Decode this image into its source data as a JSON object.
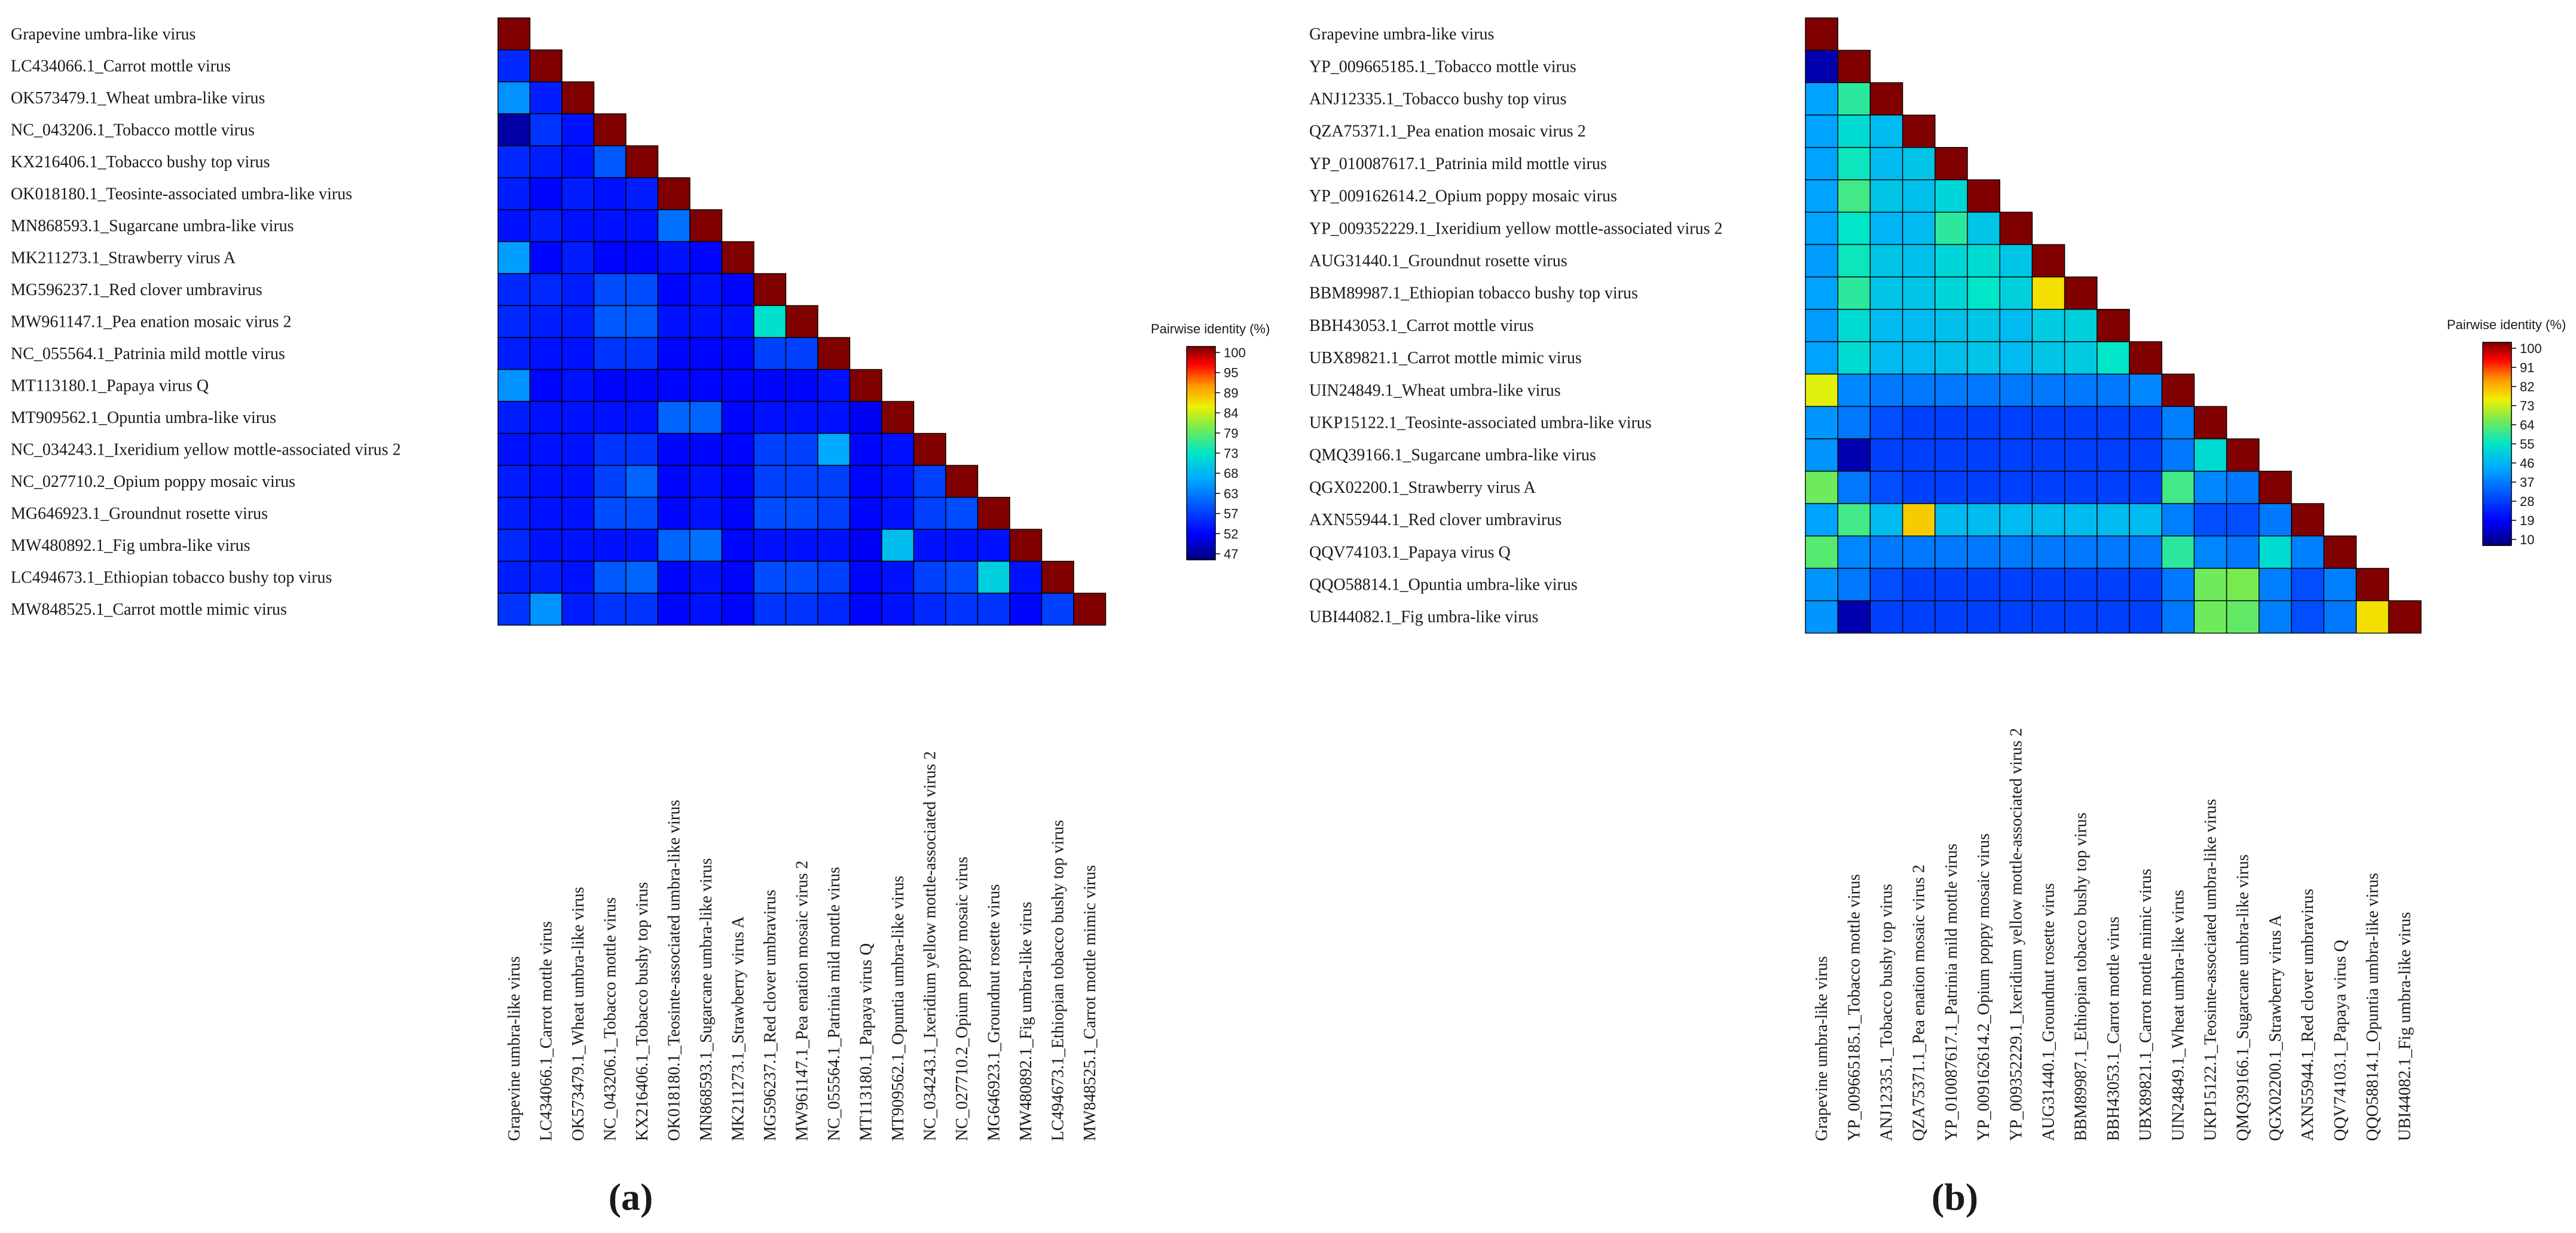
{
  "chart_data": [
    {
      "type": "heatmap",
      "panel": "(a)",
      "legend_title": "Pairwise identity (%)",
      "legend_ticks": [
        100,
        95,
        89,
        84,
        79,
        73,
        68,
        63,
        57,
        52,
        47
      ],
      "value_range": [
        45,
        100
      ],
      "labels": [
        "Grapevine umbra-like virus",
        "LC434066.1_Carrot mottle virus",
        "OK573479.1_Wheat umbra-like virus",
        "NC_043206.1_Tobacco mottle virus",
        "KX216406.1_Tobacco bushy top virus",
        "OK018180.1_Teosinte-associated umbra-like virus",
        "MN868593.1_Sugarcane umbra-like virus",
        "MK211273.1_Strawberry virus A",
        "MG596237.1_Red clover umbravirus",
        "MW961147.1_Pea enation mosaic virus 2",
        "NC_055564.1_Patrinia mild mottle virus",
        "MT113180.1_Papaya virus Q",
        "MT909562.1_Opuntia umbra-like virus",
        "NC_034243.1_Ixeridium yellow mottle-associated virus 2",
        "NC_027710.2_Opium poppy mosaic virus",
        "MG646923.1_Groundnut rosette virus",
        "MW480892.1_Fig umbra-like virus",
        "LC494673.1_Ethiopian tobacco bushy top virus",
        "MW848525.1_Carrot mottle mimic virus"
      ],
      "matrix": [
        [
          100
        ],
        [
          55,
          100
        ],
        [
          64,
          54,
          100
        ],
        [
          47,
          56,
          53,
          100
        ],
        [
          55,
          54,
          53,
          59,
          100
        ],
        [
          54,
          52,
          54,
          53,
          54,
          100
        ],
        [
          53,
          54,
          53,
          53,
          53,
          61,
          100
        ],
        [
          65,
          52,
          54,
          52,
          52,
          53,
          52,
          100
        ],
        [
          55,
          55,
          54,
          58,
          58,
          52,
          53,
          52,
          100
        ],
        [
          55,
          54,
          54,
          59,
          59,
          53,
          53,
          53,
          72,
          100
        ],
        [
          54,
          53,
          53,
          56,
          56,
          52,
          52,
          52,
          57,
          57,
          100
        ],
        [
          64,
          52,
          53,
          52,
          52,
          52,
          52,
          52,
          52,
          52,
          53,
          100
        ],
        [
          54,
          53,
          53,
          53,
          53,
          60,
          60,
          52,
          53,
          53,
          53,
          51,
          100
        ],
        [
          53,
          53,
          53,
          56,
          56,
          52,
          52,
          52,
          57,
          57,
          66,
          52,
          53,
          100
        ],
        [
          54,
          53,
          53,
          57,
          60,
          52,
          53,
          52,
          57,
          57,
          57,
          52,
          53,
          57,
          100
        ],
        [
          54,
          53,
          53,
          58,
          58,
          52,
          53,
          52,
          58,
          58,
          57,
          52,
          53,
          57,
          58,
          100
        ],
        [
          55,
          53,
          53,
          53,
          53,
          60,
          61,
          52,
          53,
          53,
          53,
          51,
          68,
          53,
          53,
          53,
          100
        ],
        [
          54,
          54,
          53,
          59,
          60,
          52,
          53,
          52,
          58,
          58,
          57,
          52,
          53,
          57,
          58,
          70,
          53,
          100
        ],
        [
          56,
          64,
          54,
          56,
          56,
          52,
          53,
          52,
          56,
          56,
          55,
          52,
          53,
          55,
          56,
          56,
          52,
          57,
          100
        ]
      ]
    },
    {
      "type": "heatmap",
      "panel": "(b)",
      "legend_title": "Pairwise identity (%)",
      "legend_ticks": [
        100,
        91,
        82,
        73,
        64,
        55,
        46,
        37,
        28,
        19,
        10
      ],
      "value_range": [
        8,
        100
      ],
      "labels": [
        "Grapevine umbra-like virus",
        "YP_009665185.1_Tobacco mottle virus",
        "ANJ12335.1_Tobacco bushy top virus",
        "QZA75371.1_Pea enation mosaic virus 2",
        "YP_010087617.1_Patrinia mild mottle virus",
        "YP_009162614.2_Opium poppy mosaic virus",
        "YP_009352229.1_Ixeridium yellow mottle-associated virus 2",
        "AUG31440.1_Groundnut rosette virus",
        "BBM89987.1_Ethiopian tobacco bushy top virus",
        "BBH43053.1_Carrot mottle virus",
        "UBX89821.1_Carrot mottle mimic virus",
        "UIN24849.1_Wheat umbra-like virus",
        "UKP15122.1_Teosinte-associated umbra-like virus",
        "QMQ39166.1_Sugarcane umbra-like virus",
        "QGX02200.1_Strawberry virus A",
        "AXN55944.1_Red clover umbravirus",
        "QQV74103.1_Papaya virus Q",
        "QQO58814.1_Opuntia umbra-like virus",
        "UBI44082.1_Fig umbra-like virus"
      ],
      "matrix": [
        [
          100
        ],
        [
          12,
          100
        ],
        [
          42,
          58,
          100
        ],
        [
          42,
          52,
          46,
          100
        ],
        [
          42,
          55,
          46,
          48,
          100
        ],
        [
          42,
          60,
          48,
          47,
          51,
          100
        ],
        [
          42,
          54,
          45,
          46,
          58,
          48,
          100
        ],
        [
          41,
          55,
          48,
          47,
          51,
          52,
          48,
          100
        ],
        [
          42,
          58,
          48,
          48,
          51,
          54,
          50,
          76,
          100
        ],
        [
          41,
          52,
          46,
          46,
          47,
          48,
          46,
          49,
          50,
          100
        ],
        [
          42,
          52,
          46,
          46,
          47,
          48,
          46,
          48,
          49,
          54,
          100
        ],
        [
          73,
          38,
          36,
          36,
          36,
          36,
          36,
          36,
          36,
          36,
          38,
          100
        ],
        [
          40,
          36,
          30,
          28,
          28,
          28,
          28,
          28,
          28,
          28,
          28,
          37,
          100
        ],
        [
          40,
          12,
          28,
          28,
          28,
          28,
          28,
          28,
          28,
          28,
          28,
          36,
          52,
          100
        ],
        [
          64,
          36,
          30,
          28,
          28,
          28,
          28,
          28,
          28,
          28,
          28,
          60,
          38,
          36,
          100
        ],
        [
          42,
          60,
          46,
          78,
          46,
          46,
          46,
          46,
          46,
          46,
          46,
          37,
          30,
          30,
          36,
          100
        ],
        [
          62,
          38,
          36,
          36,
          36,
          36,
          36,
          36,
          36,
          36,
          36,
          58,
          38,
          36,
          52,
          37,
          100
        ],
        [
          40,
          36,
          30,
          28,
          28,
          28,
          28,
          28,
          28,
          28,
          28,
          36,
          64,
          65,
          37,
          30,
          37,
          100
        ],
        [
          40,
          12,
          28,
          28,
          28,
          28,
          28,
          28,
          28,
          28,
          28,
          36,
          64,
          63,
          37,
          30,
          36,
          76,
          100
        ]
      ]
    }
  ]
}
